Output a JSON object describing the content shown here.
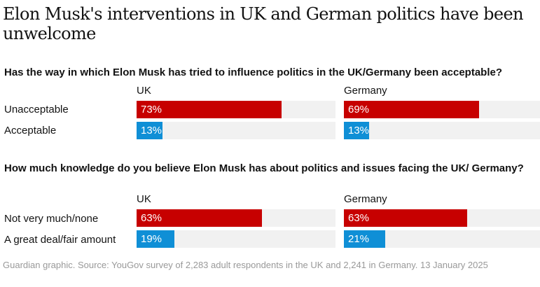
{
  "title": "Elon Musk's interventions in UK and German politics have been unwelcome",
  "footer": "Guardian graphic. Source: YouGov survey of 2,283 adult respondents in the UK and 2,241 in Germany. 13 January 2025",
  "colors": {
    "negative": "#c70000",
    "positive": "#0f8fd6",
    "track": "#f1f1f1"
  },
  "chart_data": [
    {
      "type": "bar",
      "title": "Has the way in which Elon Musk has tried to influence politics in the UK/Germany been acceptable?",
      "xlim": [
        0,
        100
      ],
      "unit": "%",
      "categories": [
        "Unacceptable",
        "Acceptable"
      ],
      "series": [
        {
          "name": "UK",
          "values": [
            73,
            13
          ],
          "labels": [
            "73%",
            "13%"
          ]
        },
        {
          "name": "Germany",
          "values": [
            69,
            13
          ],
          "labels": [
            "69%",
            "13%"
          ]
        }
      ]
    },
    {
      "type": "bar",
      "title": "How much knowledge do you believe Elon Musk has about politics and issues facing the UK/ Germany?",
      "xlim": [
        0,
        100
      ],
      "unit": "%",
      "categories": [
        "Not very much/none",
        "A great deal/fair amount"
      ],
      "series": [
        {
          "name": "UK",
          "values": [
            63,
            19
          ],
          "labels": [
            "63%",
            "19%"
          ]
        },
        {
          "name": "Germany",
          "values": [
            63,
            21
          ],
          "labels": [
            "63%",
            "21%"
          ]
        }
      ]
    }
  ]
}
